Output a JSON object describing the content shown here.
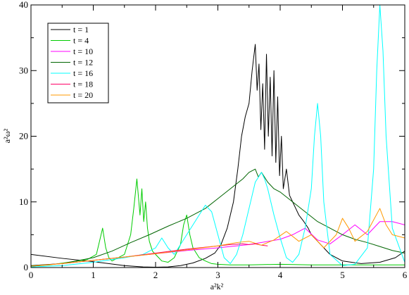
{
  "chart_data": {
    "type": "line",
    "xlabel": "a²k²",
    "ylabel": "a²ω²",
    "xlim": [
      0,
      6
    ],
    "ylim": [
      0,
      40
    ],
    "xticks": [
      0,
      1,
      2,
      3,
      4,
      5,
      6
    ],
    "yticks": [
      0,
      10,
      20,
      30,
      40
    ],
    "grid": false,
    "legend": "top-left",
    "series": [
      {
        "name": "t = 1",
        "color": "#000000",
        "x": [
          0,
          0.5,
          1.0,
          1.5,
          1.8,
          2.0,
          2.2,
          2.4,
          2.6,
          2.8,
          2.95,
          3.05,
          3.15,
          3.25,
          3.32,
          3.38,
          3.44,
          3.5,
          3.55,
          3.6,
          3.63,
          3.66,
          3.69,
          3.72,
          3.75,
          3.78,
          3.81,
          3.84,
          3.87,
          3.9,
          3.93,
          3.96,
          3.99,
          4.02,
          4.05,
          4.1,
          4.15,
          4.2,
          4.25,
          4.3,
          4.38,
          4.45,
          4.5,
          4.55,
          4.6,
          4.7,
          4.8,
          5.0,
          5.3,
          5.6,
          5.85,
          6.0
        ],
        "y": [
          2.0,
          1.4,
          0.9,
          0.3,
          0.1,
          0.05,
          0.1,
          0.3,
          0.7,
          1.4,
          2.2,
          3.5,
          6.0,
          10.0,
          15.0,
          20.0,
          23.0,
          25.0,
          30.0,
          34.0,
          27.0,
          31.0,
          21.0,
          28.0,
          18.0,
          32.5,
          20.0,
          29.0,
          17.0,
          30.0,
          16.0,
          26.0,
          14.0,
          20.0,
          12.0,
          15.0,
          11.0,
          10.0,
          9.0,
          8.0,
          7.0,
          6.0,
          5.0,
          4.5,
          4.0,
          3.0,
          2.0,
          1.0,
          0.6,
          0.8,
          1.5,
          2.5
        ]
      },
      {
        "name": "t = 4",
        "color": "#00cc00",
        "x": [
          0,
          0.3,
          0.6,
          0.9,
          1.05,
          1.1,
          1.15,
          1.2,
          1.25,
          1.3,
          1.4,
          1.5,
          1.6,
          1.65,
          1.7,
          1.75,
          1.78,
          1.81,
          1.84,
          1.87,
          1.9,
          1.95,
          2.0,
          2.05,
          2.1,
          2.2,
          2.3,
          2.4,
          2.45,
          2.5,
          2.55,
          2.6,
          2.7,
          2.8,
          2.9,
          3.0,
          3.2,
          3.5,
          4.0,
          4.5,
          5.0,
          5.5,
          6.0
        ],
        "y": [
          0.2,
          0.4,
          0.8,
          1.2,
          2.0,
          4.0,
          6.0,
          3.0,
          1.5,
          1.0,
          1.5,
          2.0,
          5.0,
          9.0,
          13.5,
          8.0,
          12.0,
          7.0,
          10.0,
          6.0,
          4.0,
          2.5,
          2.0,
          1.5,
          1.0,
          0.8,
          1.5,
          3.5,
          6.5,
          8.0,
          5.0,
          3.0,
          1.5,
          1.0,
          0.6,
          0.5,
          0.4,
          0.4,
          0.5,
          0.4,
          0.4,
          0.4,
          0.4
        ]
      },
      {
        "name": "t = 10",
        "color": "#ff00ff",
        "x": [
          0,
          0.5,
          1.0,
          1.5,
          2.0,
          2.5,
          3.0,
          3.5,
          4.0,
          4.2,
          4.4,
          4.6,
          4.8,
          5.0,
          5.2,
          5.4,
          5.6,
          5.8,
          6.0
        ],
        "y": [
          0.3,
          0.6,
          1.1,
          1.6,
          2.1,
          2.6,
          3.0,
          3.5,
          4.3,
          5.0,
          6.0,
          4.2,
          3.6,
          5.0,
          6.5,
          5.0,
          7.0,
          7.0,
          6.5
        ]
      },
      {
        "name": "t = 12",
        "color": "#006400",
        "x": [
          0,
          0.5,
          1.0,
          1.3,
          1.6,
          1.9,
          2.2,
          2.5,
          2.8,
          3.0,
          3.2,
          3.4,
          3.5,
          3.6,
          3.65,
          3.7,
          3.8,
          3.9,
          4.0,
          4.2,
          4.4,
          4.6,
          4.8,
          5.0,
          5.2,
          5.4,
          5.6,
          5.8,
          6.0
        ],
        "y": [
          0.3,
          0.6,
          1.5,
          2.5,
          3.8,
          5.0,
          6.3,
          7.5,
          9.0,
          10.5,
          12.0,
          13.5,
          14.5,
          15.0,
          13.8,
          14.5,
          13.0,
          12.0,
          11.5,
          10.0,
          8.5,
          7.0,
          6.0,
          5.0,
          4.3,
          3.8,
          3.2,
          2.6,
          2.2
        ]
      },
      {
        "name": "t = 16",
        "color": "#00ffff",
        "x": [
          0,
          0.5,
          1.0,
          1.5,
          1.8,
          2.0,
          2.1,
          2.2,
          2.3,
          2.4,
          2.5,
          2.6,
          2.7,
          2.8,
          2.9,
          3.0,
          3.1,
          3.2,
          3.3,
          3.4,
          3.5,
          3.6,
          3.7,
          3.75,
          3.8,
          3.9,
          4.0,
          4.1,
          4.2,
          4.3,
          4.4,
          4.5,
          4.55,
          4.6,
          4.65,
          4.7,
          4.8,
          5.0,
          5.2,
          5.4,
          5.5,
          5.55,
          5.6,
          5.65,
          5.7,
          5.8,
          6.0
        ],
        "y": [
          0.1,
          0.3,
          0.8,
          1.5,
          2.0,
          3.0,
          4.5,
          3.0,
          2.0,
          3.5,
          5.0,
          6.5,
          8.0,
          9.5,
          8.5,
          5.0,
          1.5,
          0.6,
          2.0,
          5.0,
          9.0,
          13.0,
          14.5,
          13.5,
          12.0,
          8.0,
          4.5,
          1.5,
          0.8,
          2.0,
          6.0,
          12.0,
          20.0,
          25.0,
          20.0,
          10.0,
          2.0,
          0.3,
          0.5,
          3.0,
          15.0,
          30.0,
          40.0,
          33.0,
          20.0,
          6.0,
          0.8
        ]
      },
      {
        "name": "t = 18",
        "color": "#ff0066",
        "x": [
          0,
          0.5,
          1.0,
          1.5,
          2.0,
          2.5,
          3.0,
          3.2,
          3.4,
          3.5,
          3.6,
          3.7,
          3.8
        ],
        "y": [
          0.2,
          0.6,
          1.1,
          1.6,
          2.2,
          2.8,
          3.3,
          3.5,
          3.6,
          3.5,
          3.6,
          3.4,
          3.3
        ]
      },
      {
        "name": "t = 20",
        "color": "#ff9900",
        "x": [
          0,
          0.5,
          1.0,
          1.5,
          2.0,
          2.5,
          3.0,
          3.3,
          3.5,
          3.7,
          3.9,
          4.1,
          4.3,
          4.5,
          4.7,
          4.9,
          5.0,
          5.1,
          5.2,
          5.4,
          5.6,
          5.7,
          5.8,
          6.0
        ],
        "y": [
          0.2,
          0.6,
          1.1,
          1.6,
          2.1,
          2.7,
          3.3,
          3.8,
          4.0,
          3.4,
          4.2,
          5.5,
          4.0,
          5.0,
          3.0,
          5.0,
          7.5,
          6.0,
          4.0,
          5.5,
          9.0,
          6.5,
          5.0,
          4.5
        ]
      }
    ]
  }
}
